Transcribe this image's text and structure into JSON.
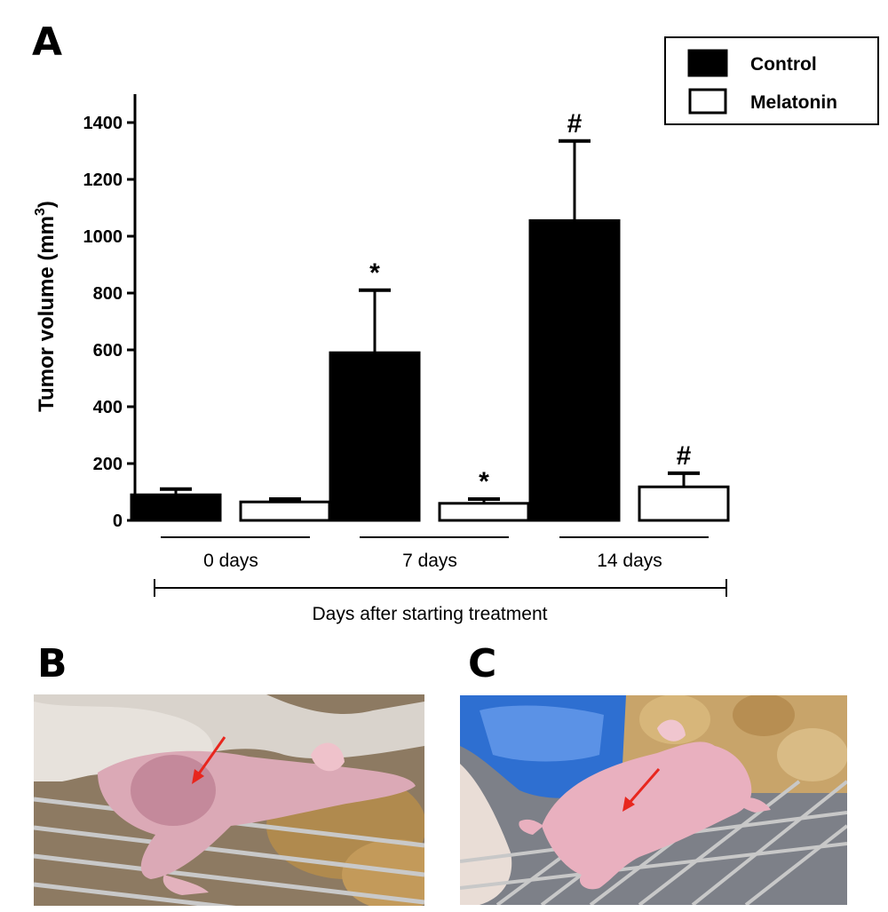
{
  "panels": {
    "a": "A",
    "b": "B",
    "c": "C"
  },
  "chart_data": {
    "type": "bar",
    "categories": [
      "0 days",
      "7 days",
      "14 days"
    ],
    "xlabel": "Days after starting treatment",
    "ylabel": "Tumor volume (mm",
    "ylabel_sup": "3",
    "ylabel_close": ")",
    "ylim": [
      0,
      1500
    ],
    "yticks": [
      0,
      200,
      400,
      600,
      800,
      1000,
      1200,
      1400
    ],
    "grid": false,
    "legend_position": "top-right",
    "series": [
      {
        "name": "Control",
        "fill": "#000000",
        "values": [
          90,
          590,
          1055
        ],
        "errors": [
          20,
          220,
          280
        ],
        "markers": [
          "",
          "*",
          "#"
        ]
      },
      {
        "name": "Melatonin",
        "fill": "#ffffff",
        "values": [
          65,
          60,
          118
        ],
        "errors": [
          10,
          15,
          48
        ],
        "markers": [
          "",
          "*",
          "#"
        ]
      }
    ]
  },
  "photos": {
    "b": {
      "subject_color": "#dba9b6",
      "background_color": "#a89070"
    },
    "c": {
      "subject_color": "#e9b0bf",
      "background_color": "#c8a46a",
      "bottle_color": "#2e6fd1"
    }
  },
  "arrow_color": "#e8261e"
}
